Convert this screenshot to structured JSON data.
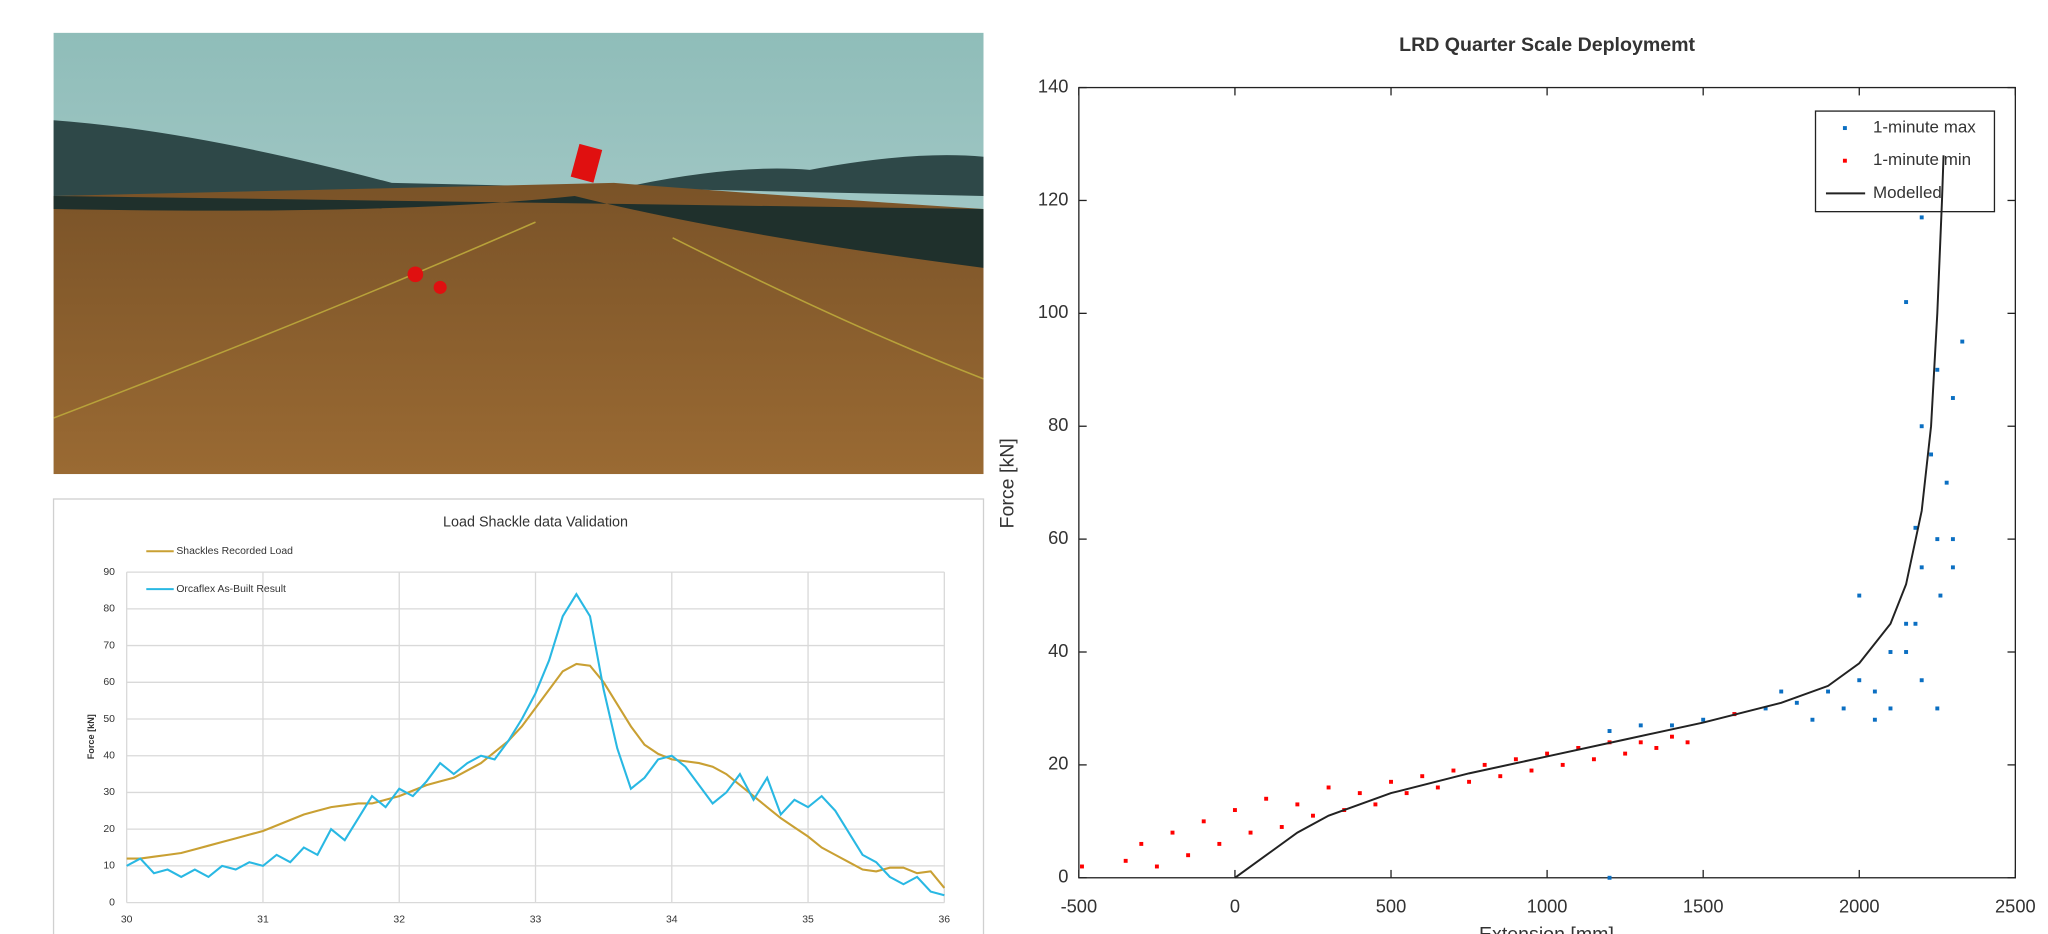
{
  "chart_data": [
    {
      "type": "line",
      "title": "Load Shackle data Validation",
      "y_label": "Force [kN]",
      "xlim": [
        30,
        36
      ],
      "xticks": [
        30,
        31,
        32,
        33,
        34,
        35,
        36
      ],
      "ylim": [
        0,
        90
      ],
      "yticks": [
        0,
        10,
        20,
        30,
        40,
        50,
        60,
        70,
        80,
        90
      ],
      "grid": true,
      "legend": "top-left",
      "x": [
        30.0,
        30.1,
        30.2,
        30.3,
        30.4,
        30.5,
        30.6,
        30.7,
        30.8,
        30.9,
        31.0,
        31.1,
        31.2,
        31.3,
        31.4,
        31.5,
        31.6,
        31.7,
        31.8,
        31.9,
        32.0,
        32.1,
        32.2,
        32.3,
        32.4,
        32.5,
        32.6,
        32.7,
        32.8,
        32.9,
        33.0,
        33.1,
        33.2,
        33.3,
        33.4,
        33.5,
        33.6,
        33.7,
        33.8,
        33.9,
        34.0,
        34.1,
        34.2,
        34.3,
        34.4,
        34.5,
        34.6,
        34.7,
        34.8,
        34.9,
        35.0,
        35.1,
        35.2,
        35.3,
        35.4,
        35.5,
        35.6,
        35.7,
        35.8,
        35.9,
        36.0
      ],
      "series": [
        {
          "name": "Shackles Recorded Load",
          "color": "#c9a033",
          "values": [
            12,
            12,
            12.5,
            13,
            13.5,
            14.5,
            15.5,
            16.5,
            17.5,
            18.5,
            19.5,
            21,
            22.5,
            24,
            25,
            26,
            26.5,
            27,
            27,
            28,
            29,
            30.5,
            32,
            33,
            34,
            36,
            38,
            41,
            44,
            48,
            53,
            58,
            63,
            65,
            64.5,
            60,
            54,
            48,
            43,
            40.5,
            39,
            38.5,
            38,
            37,
            35,
            32,
            29,
            26,
            23,
            20.5,
            18,
            15,
            13,
            11,
            9,
            8.5,
            9.5,
            9.5,
            8,
            8.5,
            4
          ]
        },
        {
          "name": "Orcaflex As-Built Result",
          "color": "#29b8e3",
          "values": [
            10,
            12,
            8,
            9,
            7,
            9,
            7,
            10,
            9,
            11,
            10,
            13,
            11,
            15,
            13,
            20,
            17,
            23,
            29,
            26,
            31,
            29,
            33,
            38,
            35,
            38,
            40,
            39,
            44,
            50,
            57,
            66,
            78,
            84,
            78,
            58,
            42,
            31,
            34,
            39,
            40,
            37,
            32,
            27,
            30,
            35,
            28,
            34,
            24,
            28,
            26,
            29,
            25,
            19,
            13,
            11,
            7,
            5,
            7,
            3,
            2
          ]
        }
      ]
    },
    {
      "type": "scatter",
      "title": "LRD Quarter Scale Deploymemt",
      "x_label": "Extension [mm]",
      "y_label": "Force [kN]",
      "xlim": [
        -500,
        2500
      ],
      "xticks": [
        -500,
        0,
        500,
        1000,
        1500,
        2000,
        2500
      ],
      "ylim": [
        0,
        140
      ],
      "yticks": [
        0,
        20,
        40,
        60,
        80,
        100,
        120,
        140
      ],
      "legend": "top-right",
      "series": [
        {
          "name": "1-minute max",
          "color": "#0b6fc2",
          "mode": "markers",
          "x": [
            1100,
            1200,
            1300,
            1400,
            1500,
            1600,
            1700,
            1800,
            1900,
            2000,
            2050,
            2100,
            2150,
            2200,
            2200,
            2250,
            2250,
            2230,
            2280,
            2300,
            2250,
            2300,
            2330,
            2150,
            2200,
            2000,
            1950,
            2100,
            2150,
            2200,
            2260,
            2180,
            1850,
            1750,
            2050,
            1200,
            2300,
            2180
          ],
          "y": [
            23,
            26,
            27,
            27,
            28,
            29,
            30,
            31,
            33,
            35,
            28,
            40,
            45,
            35,
            55,
            60,
            30,
            75,
            70,
            60,
            90,
            85,
            95,
            102,
            117,
            50,
            30,
            30,
            40,
            80,
            50,
            62,
            28,
            33,
            33,
            0,
            55,
            45
          ]
        },
        {
          "name": "1-minute min",
          "color": "#ff0000",
          "mode": "markers",
          "x": [
            -350,
            -300,
            -250,
            -200,
            -150,
            -100,
            -50,
            0,
            50,
            100,
            150,
            200,
            250,
            300,
            350,
            400,
            450,
            500,
            550,
            600,
            650,
            700,
            750,
            800,
            850,
            900,
            950,
            1000,
            1050,
            1100,
            1150,
            1200,
            1250,
            1300,
            1350,
            1400,
            1450,
            1600,
            -490
          ],
          "y": [
            3,
            6,
            2,
            8,
            4,
            10,
            6,
            12,
            8,
            14,
            9,
            13,
            11,
            16,
            12,
            15,
            13,
            17,
            15,
            18,
            16,
            19,
            17,
            20,
            18,
            21,
            19,
            22,
            20,
            23,
            21,
            24,
            22,
            24,
            23,
            25,
            24,
            29,
            2
          ]
        },
        {
          "name": "Modelled",
          "color": "#222222",
          "mode": "line",
          "x": [
            0,
            100,
            200,
            300,
            500,
            750,
            1000,
            1250,
            1500,
            1750,
            1900,
            2000,
            2100,
            2150,
            2200,
            2230,
            2250,
            2265,
            2270
          ],
          "y": [
            0,
            4,
            8,
            11,
            15,
            18.5,
            21.5,
            24.5,
            27.5,
            31,
            34,
            38,
            45,
            52,
            65,
            80,
            100,
            120,
            128
          ]
        }
      ]
    }
  ]
}
